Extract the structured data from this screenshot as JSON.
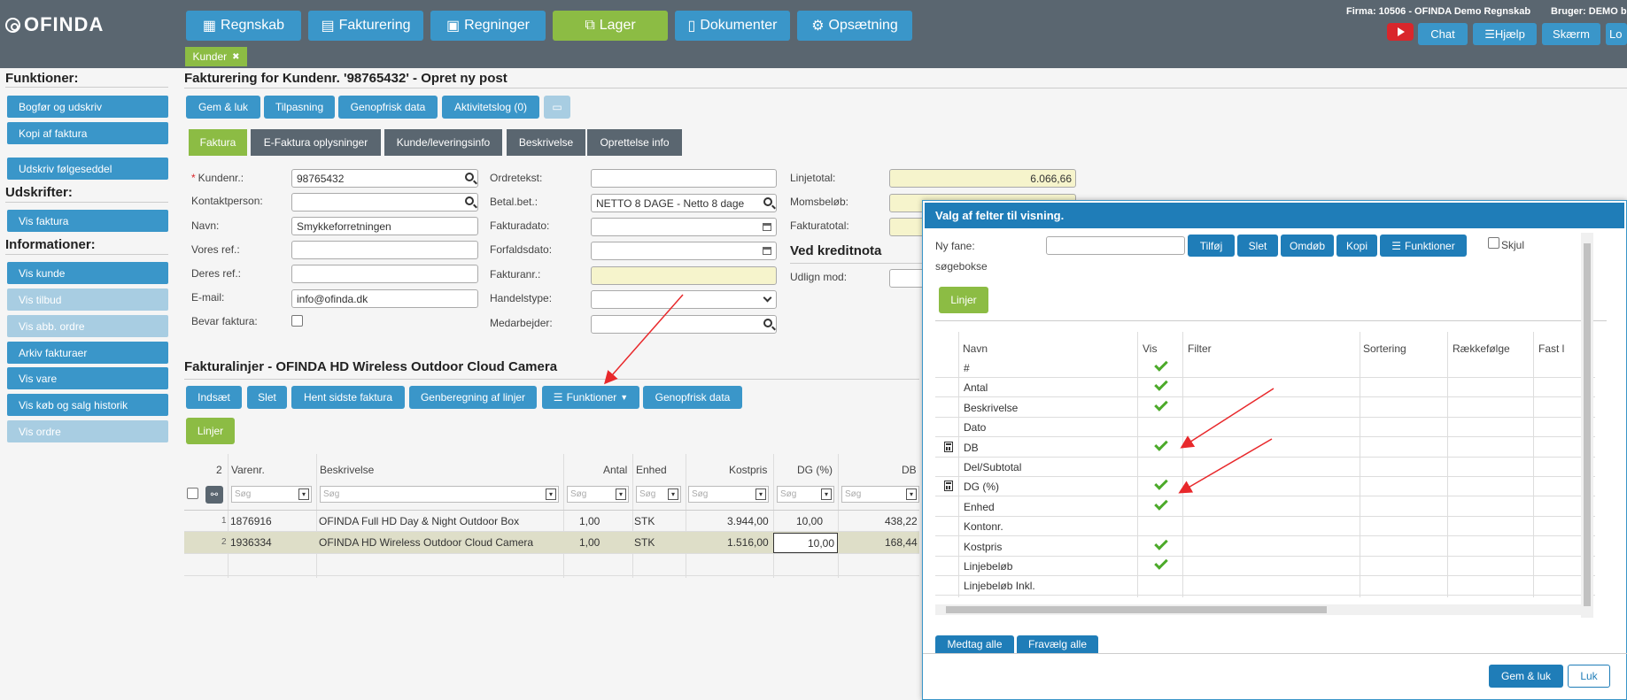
{
  "app": {
    "logo": "OFINDA"
  },
  "nav": {
    "items": [
      {
        "label": "Regnskab",
        "icon": "calculator-icon"
      },
      {
        "label": "Fakturering",
        "icon": "clipboard-icon"
      },
      {
        "label": "Regninger",
        "icon": "image-icon"
      },
      {
        "label": "Lager",
        "icon": "boxes-icon"
      },
      {
        "label": "Dokumenter",
        "icon": "file-icon"
      },
      {
        "label": "Opsætning",
        "icon": "gear-icon"
      }
    ],
    "active": "Lager"
  },
  "topright": {
    "firma": "Firma: 10506 - OFINDA Demo Regnskab",
    "bruger": "Bruger: DEMO br",
    "chat": "Chat",
    "hjaelp": "Hjælp",
    "skaerm": "Skærm",
    "lo": "Lo"
  },
  "open_tab": {
    "label": "Kunder",
    "close": "✖"
  },
  "sidebar": {
    "funktioner_head": "Funktioner:",
    "bogfor": "Bogfør og udskriv",
    "kopi": "Kopi af faktura",
    "udskriv_folgeseddel": "Udskriv følgeseddel",
    "udskrifter_head": "Udskrifter:",
    "vis_faktura": "Vis faktura",
    "info_head": "Informationer:",
    "vis_kunde": "Vis kunde",
    "vis_tilbud": "Vis tilbud",
    "vis_abb": "Vis abb. ordre",
    "arkiv": "Arkiv fakturaer",
    "vis_vare": "Vis vare",
    "vis_kob": "Vis køb og salg historik",
    "vis_ordre": "Vis ordre"
  },
  "page": {
    "title": "Fakturering for Kundenr. '98765432' - Opret ny post"
  },
  "actions": {
    "gem_luk": "Gem & luk",
    "tilpasning": "Tilpasning",
    "genopfrisk": "Genopfrisk data",
    "aktivitetslog": "Aktivitetslog (0)"
  },
  "tabs": {
    "faktura": "Faktura",
    "efaktura": "E-Faktura oplysninger",
    "kunde_lev": "Kunde/leveringsinfo",
    "beskrivelse": "Beskrivelse",
    "oprettelse": "Oprettelse info"
  },
  "form": {
    "kundenr_label": "Kundenr.:",
    "kundenr": "98765432",
    "kontakt_label": "Kontaktperson:",
    "kontakt": "",
    "navn_label": "Navn:",
    "navn": "Smykkeforretningen",
    "voresref_label": "Vores ref.:",
    "voresref": "",
    "deresref_label": "Deres ref.:",
    "deresref": "",
    "email_label": "E-mail:",
    "email": "info@ofinda.dk",
    "bevar_label": "Bevar faktura:",
    "ordretekst_label": "Ordretekst:",
    "ordretekst": "",
    "betal_label": "Betal.bet.:",
    "betal": "NETTO 8 DAGE - Netto 8 dage",
    "fakturadato_label": "Fakturadato:",
    "fakturadato": "",
    "forfald_label": "Forfaldsdato:",
    "forfald": "",
    "fakturanr_label": "Fakturanr.:",
    "fakturanr": "",
    "handel_label": "Handelstype:",
    "handel": "",
    "medarb_label": "Medarbejder:",
    "medarb": "",
    "linjetotal_label": "Linjetotal:",
    "linjetotal": "6.066,66",
    "moms_label": "Momsbeløb:",
    "moms": "",
    "fakturatotal_label": "Fakturatotal:",
    "fakturatotal": "",
    "kreditnota_head": "Ved kreditnota",
    "udlign_label": "Udlign mod:",
    "udlign": ""
  },
  "lines": {
    "title": "Fakturalinjer - OFINDA HD Wireless Outdoor Cloud Camera",
    "indsaet": "Indsæt",
    "slet": "Slet",
    "hent": "Hent sidste faktura",
    "genberegning": "Genberegning af linjer",
    "funktioner": "Funktioner",
    "genopfrisk": "Genopfrisk data",
    "linjer_tab": "Linjer",
    "count": "2",
    "headers": [
      "Varenr.",
      "Beskrivelse",
      "Antal",
      "Enhed",
      "Kostpris",
      "DG (%)",
      "DB"
    ],
    "search_placeholder": "Søg",
    "rows": [
      {
        "n": "1",
        "varenr": "1876916",
        "beskrivelse": "OFINDA Full HD Day & Night Outdoor Box",
        "antal": "1,00",
        "enhed": "STK",
        "kostpris": "3.944,00",
        "dg": "10,00",
        "db": "438,22"
      },
      {
        "n": "2",
        "varenr": "1936334",
        "beskrivelse": "OFINDA HD Wireless Outdoor Cloud Camera",
        "antal": "1,00",
        "enhed": "STK",
        "kostpris": "1.516,00",
        "dg": "10,00",
        "db": "168,44"
      }
    ]
  },
  "dialog": {
    "title": "Valg af felter til visning.",
    "ny_fane_label": "Ny fane:",
    "ny_fane": "",
    "tilfoj": "Tilføj",
    "slet": "Slet",
    "omdob": "Omdøb",
    "kopi": "Kopi",
    "funktioner": "Funktioner",
    "skjul": "Skjul",
    "sogebokse": "søgebokse",
    "linjer_tab": "Linjer",
    "headers": [
      "Navn",
      "Vis",
      "Filter",
      "Sortering",
      "Rækkefølge",
      "Fast l"
    ],
    "rows": [
      {
        "navn": "#",
        "vis": true,
        "calc": false
      },
      {
        "navn": "Antal",
        "vis": true,
        "calc": false
      },
      {
        "navn": "Beskrivelse",
        "vis": true,
        "calc": false
      },
      {
        "navn": "Dato",
        "vis": false,
        "calc": false
      },
      {
        "navn": "DB",
        "vis": true,
        "calc": true
      },
      {
        "navn": "Del/Subtotal",
        "vis": false,
        "calc": false
      },
      {
        "navn": "DG (%)",
        "vis": true,
        "calc": true
      },
      {
        "navn": "Enhed",
        "vis": true,
        "calc": false
      },
      {
        "navn": "Kontonr.",
        "vis": false,
        "calc": false
      },
      {
        "navn": "Kostpris",
        "vis": true,
        "calc": false
      },
      {
        "navn": "Linjebeløb",
        "vis": true,
        "calc": false
      },
      {
        "navn": "Linjebeløb Inkl.",
        "vis": false,
        "calc": false
      }
    ],
    "medtag": "Medtag alle",
    "fravaelg": "Fravælg alle",
    "gem_luk": "Gem & luk",
    "luk": "Luk"
  },
  "colors": {
    "topbar": "#5a6670",
    "primary": "#3a96c9",
    "green": "#8cbc44",
    "dialog_head": "#1f7db8",
    "annotation": "#e8282b"
  }
}
